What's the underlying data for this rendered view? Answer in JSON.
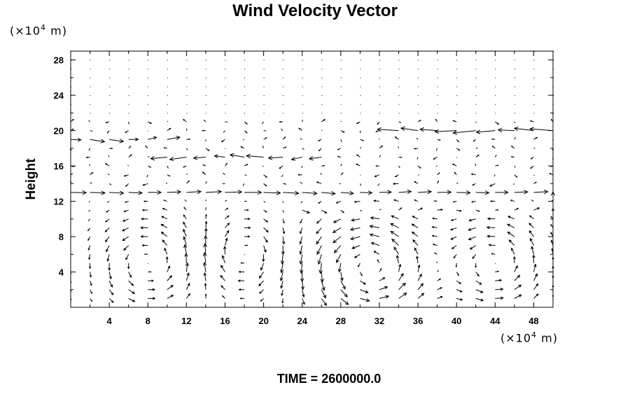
{
  "chart_data": {
    "type": "vector",
    "title": "Wind Velocity Vector",
    "ylabel": "Height",
    "y_unit": {
      "prefix": "(×10",
      "exp": "4",
      "suffix": " m)"
    },
    "x_unit": {
      "prefix": "(×10",
      "exp": "4",
      "suffix": " m)"
    },
    "xlim": [
      0,
      50
    ],
    "ylim": [
      0,
      29
    ],
    "x_ticks": [
      4,
      8,
      12,
      16,
      20,
      24,
      28,
      32,
      36,
      40,
      44,
      48
    ],
    "y_ticks": [
      4,
      8,
      12,
      16,
      20,
      24,
      28
    ],
    "grid": false,
    "footer": "TIME = 2600000.0",
    "grid_spacing": {
      "dx": 2,
      "dy": 1
    },
    "circulation_cells": [
      {
        "center_x": 8,
        "center_y": 5,
        "radius_x": 5,
        "radius_y": 5,
        "sense": 1,
        "strength": 1.6
      },
      {
        "center_x": 18,
        "center_y": 6,
        "radius_x": 4,
        "radius_y": 4,
        "sense": -1,
        "strength": 1.4
      },
      {
        "center_x": 31,
        "center_y": 4.5,
        "radius_x": 6,
        "radius_y": 5.5,
        "sense": 1,
        "strength": 2.2
      },
      {
        "center_x": 44,
        "center_y": 5,
        "radius_x": 5,
        "radius_y": 5,
        "sense": 1,
        "strength": 1.8
      }
    ],
    "horizontal_jets": [
      {
        "y": 20,
        "from_x": 34,
        "to_x": 50,
        "u": -2.0
      },
      {
        "y": 19,
        "from_x": 0,
        "to_x": 10,
        "u": 1.2
      },
      {
        "y": 17,
        "from_x": 10,
        "to_x": 26,
        "u": -1.4
      },
      {
        "y": 13,
        "from_x": 0,
        "to_x": 50,
        "u": 1.6
      },
      {
        "y": 11,
        "from_x": 24,
        "to_x": 50,
        "u": 0.9
      }
    ]
  },
  "colors": {
    "axis": "#000000",
    "arrow": "#000000",
    "background": "#ffffff"
  }
}
